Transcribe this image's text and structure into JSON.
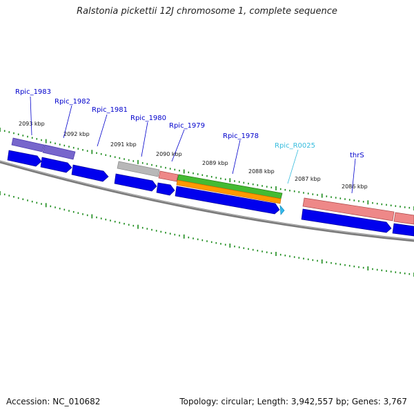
{
  "title": "Ralstonia pickettii 12J chromosome 1, complete sequence",
  "footer": {
    "accession": "Accession: NC_010682",
    "summary": "Topology: circular; Length: 3,942,557 bp; Genes: 3,767"
  },
  "kbp_labels": [
    "2093 kbp",
    "2092 kbp",
    "2091 kbp",
    "2090 kbp",
    "2089 kbp",
    "2088 kbp",
    "2087 kbp",
    "2086 kbp"
  ],
  "genes": [
    {
      "name": "Rpic_1983",
      "color": "#0000cc"
    },
    {
      "name": "Rpic_1982",
      "color": "#0000cc"
    },
    {
      "name": "Rpic_1981",
      "color": "#0000cc"
    },
    {
      "name": "Rpic_1980",
      "color": "#0000cc"
    },
    {
      "name": "Rpic_1979",
      "color": "#0000cc"
    },
    {
      "name": "Rpic_1978",
      "color": "#0000cc"
    },
    {
      "name": "Rpic_R0025",
      "color": "#33bbdd"
    },
    {
      "name": "thrS",
      "color": "#0000cc"
    }
  ],
  "colors": {
    "backbone": "#808080",
    "tick": "#1a8a1a",
    "cds": "#0000ee",
    "purple": "#7766cc",
    "gray": "#b0b0b0",
    "pink": "#ee8888",
    "green": "#44bb33",
    "orange": "#ff9900",
    "rna": "#33bbee"
  }
}
